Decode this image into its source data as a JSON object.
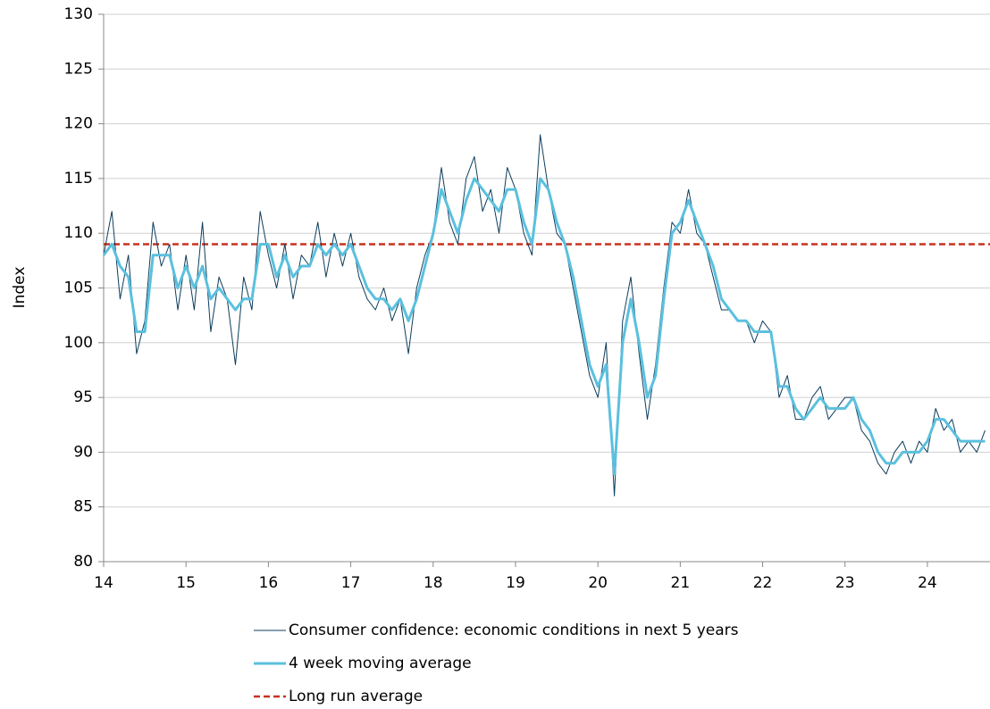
{
  "chart_data": {
    "type": "line",
    "y_label": "Index",
    "x": [
      14.0,
      14.1,
      14.2,
      14.3,
      14.4,
      14.5,
      14.6,
      14.7,
      14.8,
      14.9,
      15.0,
      15.1,
      15.2,
      15.3,
      15.4,
      15.5,
      15.6,
      15.7,
      15.8,
      15.9,
      16.0,
      16.1,
      16.2,
      16.3,
      16.4,
      16.5,
      16.6,
      16.7,
      16.8,
      16.9,
      17.0,
      17.1,
      17.2,
      17.3,
      17.4,
      17.5,
      17.6,
      17.7,
      17.8,
      17.9,
      18.0,
      18.1,
      18.2,
      18.3,
      18.4,
      18.5,
      18.6,
      18.7,
      18.8,
      18.9,
      19.0,
      19.1,
      19.2,
      19.3,
      19.4,
      19.5,
      19.6,
      19.7,
      19.8,
      19.9,
      20.0,
      20.1,
      20.2,
      20.3,
      20.4,
      20.5,
      20.6,
      20.7,
      20.8,
      20.9,
      21.0,
      21.1,
      21.2,
      21.3,
      21.4,
      21.5,
      21.6,
      21.7,
      21.8,
      21.9,
      22.0,
      22.1,
      22.2,
      22.3,
      22.4,
      22.5,
      22.6,
      22.7,
      22.8,
      22.9,
      23.0,
      23.1,
      23.2,
      23.3,
      23.4,
      23.5,
      23.6,
      23.7,
      23.8,
      23.9,
      24.0,
      24.1,
      24.2,
      24.3,
      24.4,
      24.5,
      24.6,
      24.7
    ],
    "series": [
      {
        "name": "Consumer confidence: economic conditions in next 5 years",
        "color": "#0d3d5c",
        "width": 1,
        "values": [
          108,
          112,
          104,
          108,
          99,
          102,
          111,
          107,
          109,
          103,
          108,
          103,
          111,
          101,
          106,
          104,
          98,
          106,
          103,
          112,
          108,
          105,
          109,
          104,
          108,
          107,
          111,
          106,
          110,
          107,
          110,
          106,
          104,
          103,
          105,
          102,
          104,
          99,
          105,
          108,
          110,
          116,
          111,
          109,
          115,
          117,
          112,
          114,
          110,
          116,
          114,
          110,
          108,
          119,
          114,
          110,
          109,
          105,
          101,
          97,
          95,
          100,
          86,
          102,
          106,
          99,
          93,
          98,
          105,
          111,
          110,
          114,
          110,
          109,
          106,
          103,
          103,
          102,
          102,
          100,
          102,
          101,
          95,
          97,
          93,
          93,
          95,
          96,
          93,
          94,
          95,
          95,
          92,
          91,
          89,
          88,
          90,
          91,
          89,
          91,
          90,
          94,
          92,
          93,
          90,
          91,
          90,
          92
        ]
      },
      {
        "name": "4 week moving average",
        "color": "#5bc0de",
        "width": 3,
        "values": [
          108,
          109,
          107,
          106,
          101,
          101,
          108,
          108,
          108,
          105,
          107,
          105,
          107,
          104,
          105,
          104,
          103,
          104,
          104,
          109,
          109,
          106,
          108,
          106,
          107,
          107,
          109,
          108,
          109,
          108,
          109,
          107,
          105,
          104,
          104,
          103,
          104,
          102,
          104,
          107,
          110,
          114,
          112,
          110,
          113,
          115,
          114,
          113,
          112,
          114,
          114,
          111,
          109,
          115,
          114,
          111,
          109,
          106,
          102,
          98,
          96,
          98,
          88,
          100,
          104,
          100,
          95,
          97,
          104,
          110,
          111,
          113,
          111,
          109,
          107,
          104,
          103,
          102,
          102,
          101,
          101,
          101,
          96,
          96,
          94,
          93,
          94,
          95,
          94,
          94,
          94,
          95,
          93,
          92,
          90,
          89,
          89,
          90,
          90,
          90,
          91,
          93,
          93,
          92,
          91,
          91,
          91,
          91
        ]
      }
    ],
    "long_run_average": {
      "name": "Long run average",
      "color": "#c8321e",
      "value": 109
    },
    "xlim": [
      14,
      24.76
    ],
    "xticks": [
      14,
      15,
      16,
      17,
      18,
      19,
      20,
      21,
      22,
      23,
      24
    ],
    "ylim": [
      80,
      130
    ],
    "yticks": [
      80,
      85,
      90,
      95,
      100,
      105,
      110,
      115,
      120,
      125,
      130
    ],
    "grid": true,
    "legend": "bottom"
  }
}
